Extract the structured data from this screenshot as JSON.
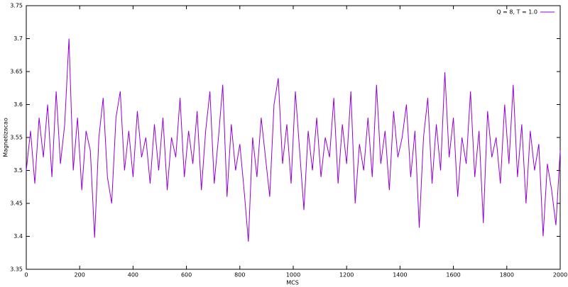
{
  "chart_data": {
    "type": "line",
    "xlabel": "MCS",
    "ylabel": "Magnetizacao",
    "xlim": [
      0,
      2000
    ],
    "xticks": [
      0,
      200,
      400,
      600,
      800,
      1000,
      1200,
      1400,
      1600,
      1800,
      2000
    ],
    "ylim": [
      3.35,
      3.75
    ],
    "yticks": [
      3.35,
      3.4,
      3.45,
      3.5,
      3.55,
      3.6,
      3.65,
      3.7,
      3.75
    ],
    "grid": false,
    "legend": "top-right",
    "x": [
      0,
      16,
      32,
      48,
      64,
      80,
      96,
      112,
      128,
      144,
      160,
      176,
      192,
      208,
      224,
      240,
      256,
      272,
      288,
      304,
      320,
      336,
      352,
      368,
      384,
      400,
      416,
      432,
      448,
      464,
      480,
      496,
      512,
      528,
      544,
      560,
      576,
      592,
      608,
      624,
      640,
      656,
      672,
      688,
      704,
      720,
      736,
      752,
      768,
      784,
      800,
      816,
      832,
      848,
      864,
      880,
      896,
      912,
      928,
      944,
      960,
      976,
      992,
      1008,
      1024,
      1040,
      1056,
      1072,
      1088,
      1104,
      1120,
      1136,
      1152,
      1168,
      1184,
      1200,
      1216,
      1232,
      1248,
      1264,
      1280,
      1296,
      1312,
      1328,
      1344,
      1360,
      1376,
      1392,
      1408,
      1424,
      1440,
      1456,
      1472,
      1488,
      1504,
      1520,
      1536,
      1552,
      1568,
      1584,
      1600,
      1616,
      1632,
      1648,
      1664,
      1680,
      1696,
      1712,
      1728,
      1744,
      1760,
      1776,
      1792,
      1808,
      1824,
      1840,
      1856,
      1872,
      1888,
      1904,
      1920,
      1936,
      1952,
      1968,
      1984,
      2000
    ],
    "series": [
      {
        "name": "Q = 8, T = 1.0",
        "color": "#9400d3",
        "values": [
          3.5,
          3.56,
          3.48,
          3.58,
          3.52,
          3.6,
          3.49,
          3.62,
          3.51,
          3.57,
          3.7,
          3.5,
          3.58,
          3.47,
          3.56,
          3.53,
          3.398,
          3.55,
          3.61,
          3.49,
          3.45,
          3.58,
          3.62,
          3.5,
          3.56,
          3.49,
          3.59,
          3.52,
          3.55,
          3.48,
          3.57,
          3.5,
          3.58,
          3.47,
          3.55,
          3.52,
          3.61,
          3.49,
          3.56,
          3.51,
          3.59,
          3.47,
          3.56,
          3.62,
          3.48,
          3.55,
          3.63,
          3.46,
          3.57,
          3.5,
          3.54,
          3.47,
          3.392,
          3.55,
          3.49,
          3.58,
          3.52,
          3.46,
          3.6,
          3.64,
          3.51,
          3.57,
          3.48,
          3.62,
          3.53,
          3.44,
          3.56,
          3.5,
          3.58,
          3.49,
          3.55,
          3.52,
          3.61,
          3.48,
          3.57,
          3.51,
          3.62,
          3.45,
          3.54,
          3.5,
          3.58,
          3.49,
          3.63,
          3.51,
          3.56,
          3.47,
          3.59,
          3.52,
          3.55,
          3.6,
          3.49,
          3.56,
          3.413,
          3.55,
          3.61,
          3.48,
          3.57,
          3.5,
          3.649,
          3.52,
          3.58,
          3.46,
          3.55,
          3.51,
          3.62,
          3.49,
          3.56,
          3.42,
          3.59,
          3.52,
          3.55,
          3.48,
          3.6,
          3.51,
          3.63,
          3.49,
          3.57,
          3.45,
          3.56,
          3.5,
          3.54,
          3.4,
          3.51,
          3.47,
          3.417,
          3.53
        ]
      }
    ]
  }
}
